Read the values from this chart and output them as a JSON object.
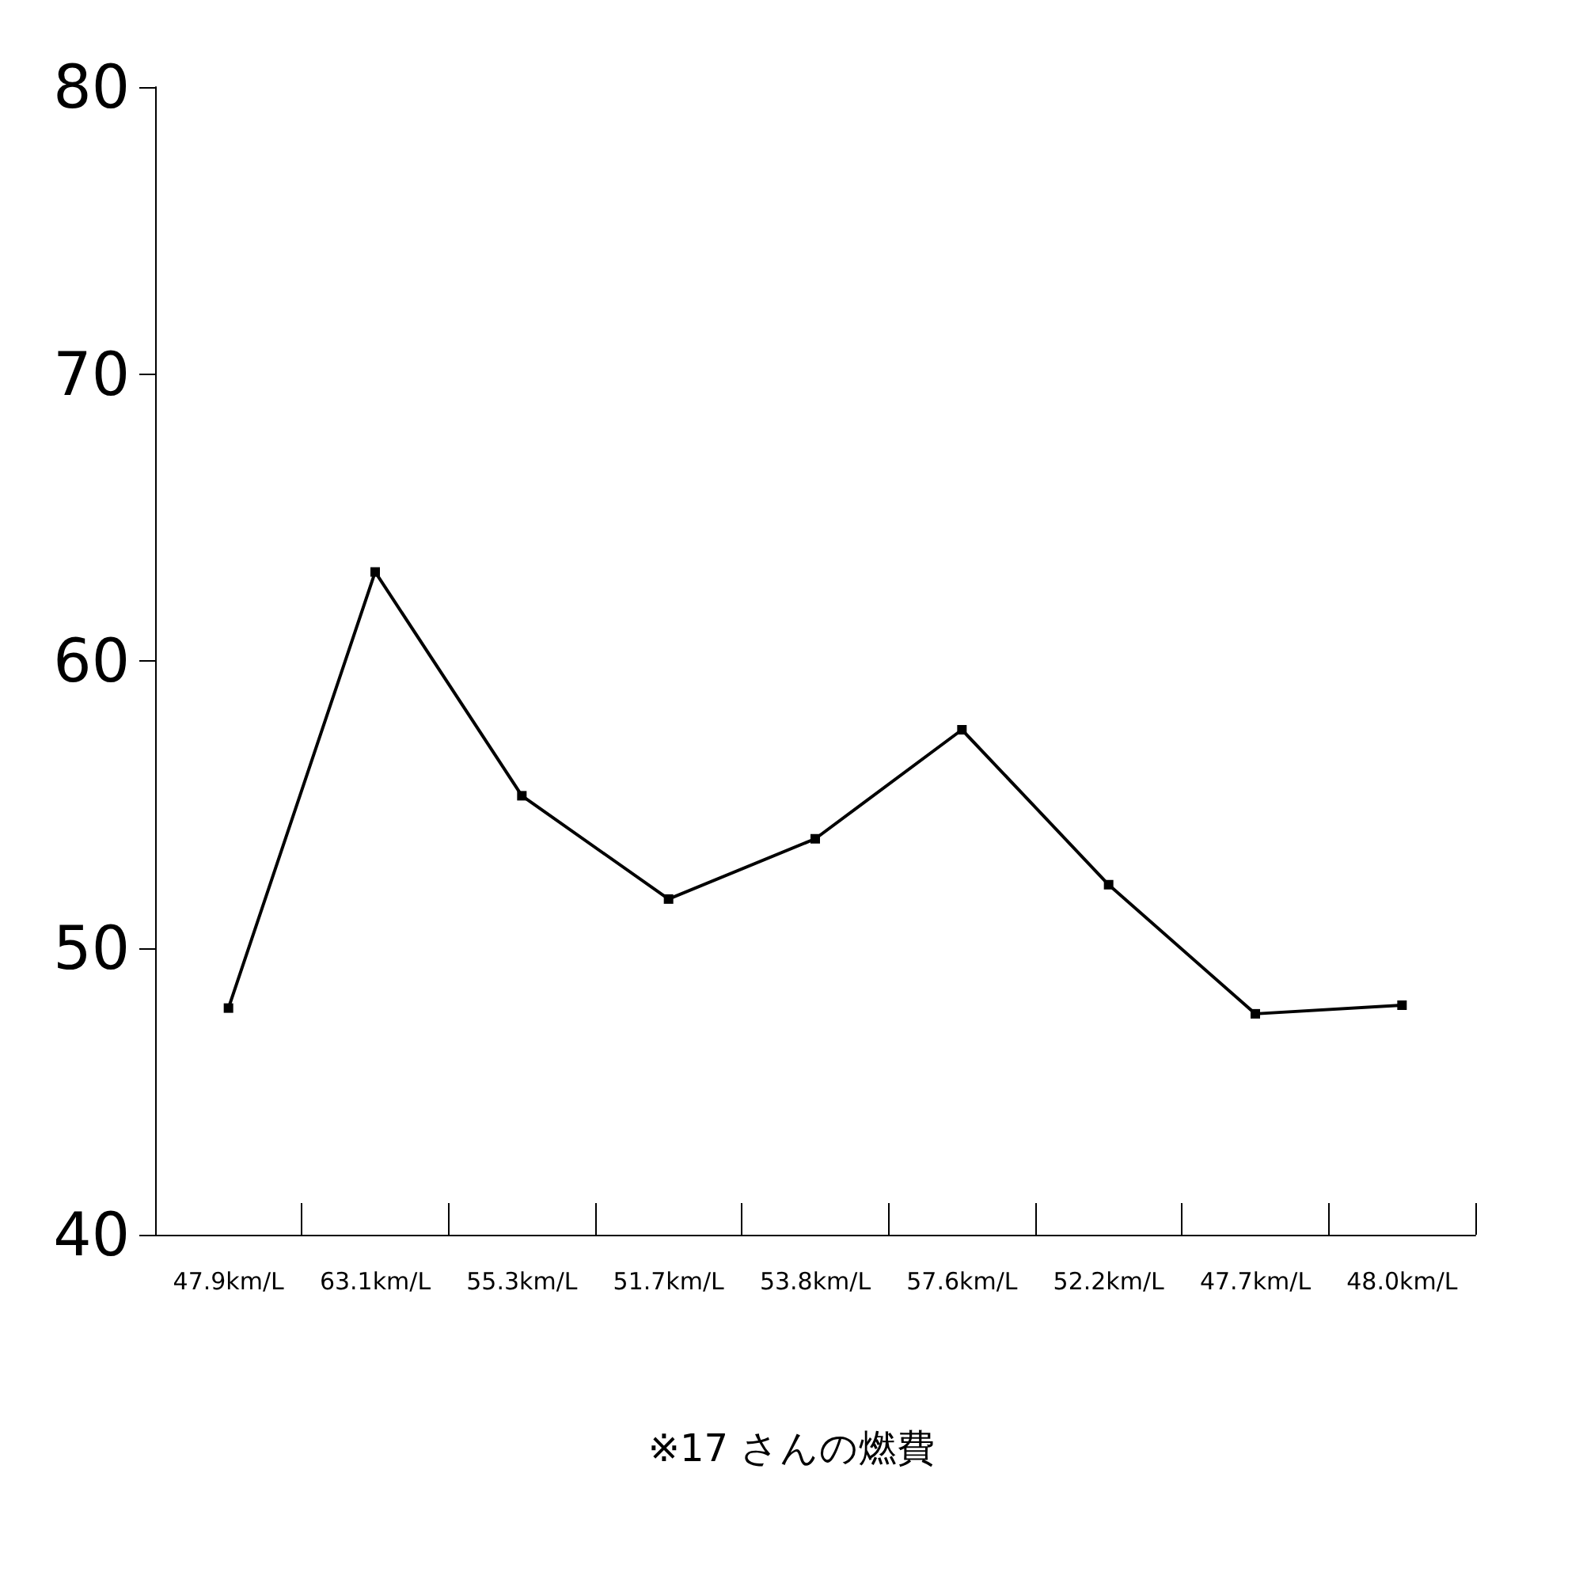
{
  "chart_data": {
    "type": "line",
    "categories": [
      "47.9km/L",
      "63.1km/L",
      "55.3km/L",
      "51.7km/L",
      "53.8km/L",
      "57.6km/L",
      "52.2km/L",
      "47.7km/L",
      "48.0km/L"
    ],
    "series": [
      {
        "color": "#000000",
        "values": [
          47.9,
          63.1,
          55.3,
          51.7,
          53.8,
          57.6,
          52.2,
          47.7,
          48.0
        ]
      }
    ],
    "ylim": [
      40,
      80
    ],
    "yticks": [
      40,
      50,
      60,
      70,
      80
    ],
    "grid": false,
    "marker": "square",
    "line_style": "solid",
    "annotations": [
      "※17 さんの燃費"
    ]
  }
}
